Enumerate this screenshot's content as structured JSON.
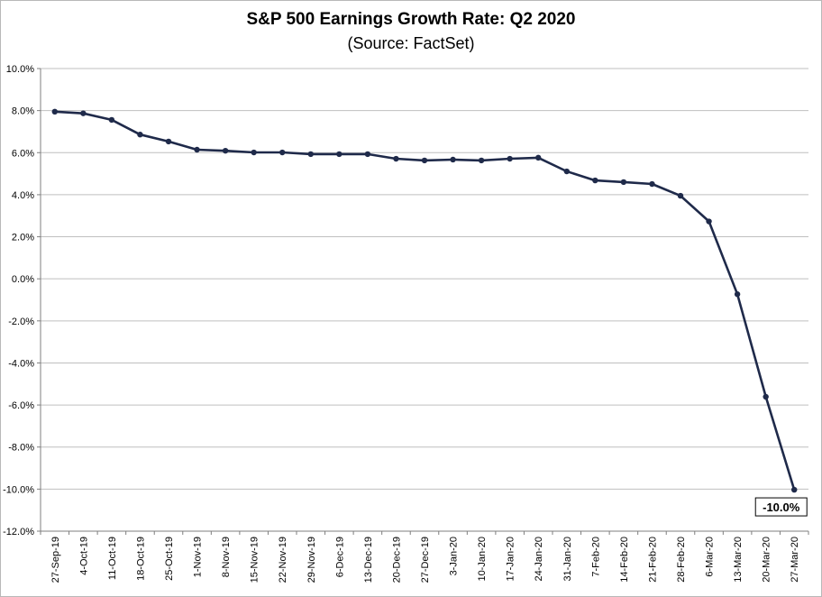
{
  "chart_data": {
    "type": "line",
    "title": "S&P 500 Earnings Growth Rate: Q2 2020",
    "subtitle": "(Source: FactSet)",
    "xlabel": "",
    "ylabel": "",
    "ylim": [
      -12,
      10
    ],
    "ytick_labels": [
      "10.0%",
      "8.0%",
      "6.0%",
      "4.0%",
      "2.0%",
      "0.0%",
      "-2.0%",
      "-4.0%",
      "-6.0%",
      "-8.0%",
      "-10.0%",
      "-12.0%"
    ],
    "grid": true,
    "legend": "none",
    "categories": [
      "27-Sep-19",
      "4-Oct-19",
      "11-Oct-19",
      "18-Oct-19",
      "25-Oct-19",
      "1-Nov-19",
      "8-Nov-19",
      "15-Nov-19",
      "22-Nov-19",
      "29-Nov-19",
      "6-Dec-19",
      "13-Dec-19",
      "20-Dec-19",
      "27-Dec-19",
      "3-Jan-20",
      "10-Jan-20",
      "17-Jan-20",
      "24-Jan-20",
      "31-Jan-20",
      "7-Feb-20",
      "14-Feb-20",
      "21-Feb-20",
      "28-Feb-20",
      "6-Mar-20",
      "13-Mar-20",
      "20-Mar-20",
      "27-Mar-20"
    ],
    "series": [
      {
        "values": [
          7.95,
          7.87,
          7.56,
          6.86,
          6.53,
          6.14,
          6.09,
          6.01,
          6.01,
          5.93,
          5.93,
          5.93,
          5.71,
          5.63,
          5.67,
          5.63,
          5.71,
          5.76,
          5.11,
          4.68,
          4.6,
          4.51,
          3.95,
          2.73,
          -0.73,
          -5.61,
          -10.03
        ]
      }
    ],
    "annotation": "-10.0%",
    "line_color": "#1f2a4a"
  }
}
